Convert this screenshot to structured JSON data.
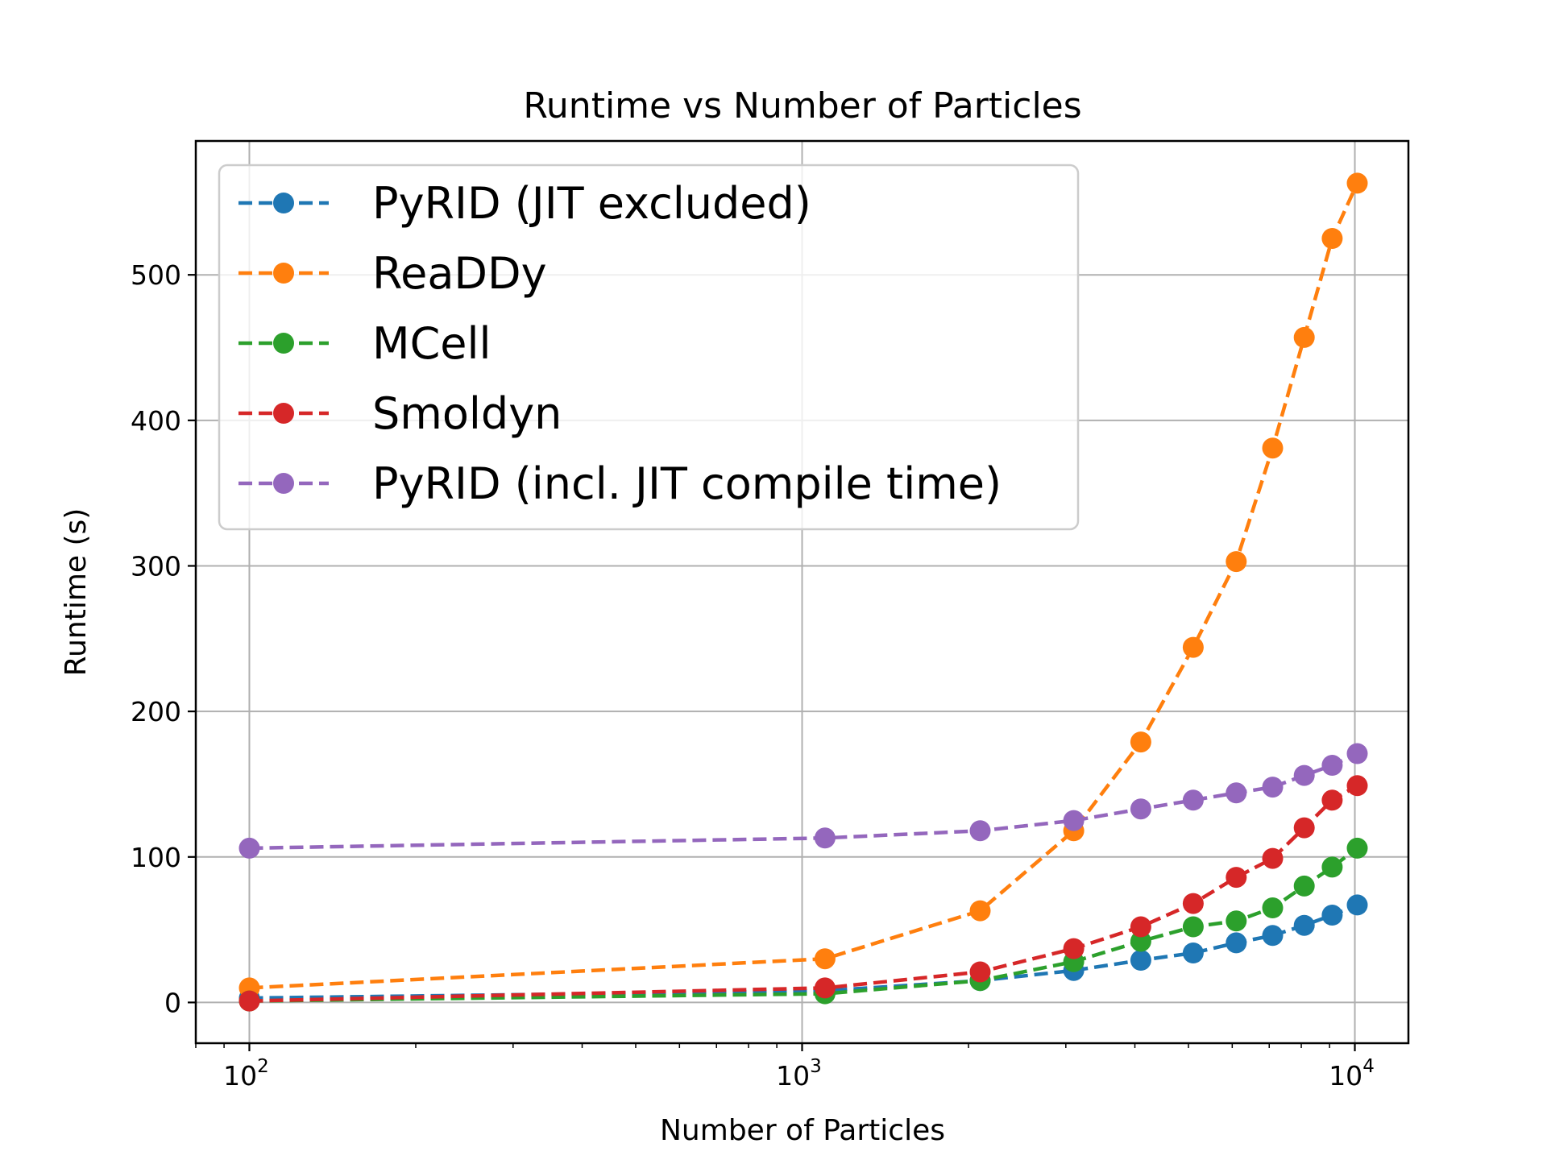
{
  "chart_data": {
    "type": "line",
    "title": "Runtime vs Number of Particles",
    "xlabel": "Number of Particles",
    "ylabel": "Runtime (s)",
    "xscale": "log",
    "xlim": [
      80,
      12500
    ],
    "ylim": [
      -28,
      592
    ],
    "xticks": [
      {
        "value": 100,
        "base": "10",
        "exp": "2"
      },
      {
        "value": 1000,
        "base": "10",
        "exp": "3"
      },
      {
        "value": 10000,
        "base": "10",
        "exp": "4"
      }
    ],
    "yticks": [
      {
        "value": 0,
        "label": "0"
      },
      {
        "value": 100,
        "label": "100"
      },
      {
        "value": 200,
        "label": "200"
      },
      {
        "value": 300,
        "label": "300"
      },
      {
        "value": 400,
        "label": "400"
      },
      {
        "value": 500,
        "label": "500"
      }
    ],
    "grid": true,
    "legend_position": "upper-left",
    "x": [
      100,
      1100,
      2100,
      3100,
      4100,
      5100,
      6100,
      7100,
      8100,
      9100,
      10100
    ],
    "series": [
      {
        "name": "PyRID (JIT excluded)",
        "color": "#1f77b4",
        "values": [
          3,
          8,
          15,
          22,
          29,
          34,
          41,
          46,
          53,
          60,
          67
        ],
        "x": [
          100,
          1100,
          2100,
          3100,
          4100,
          5100,
          6100,
          7100,
          8100,
          9100,
          10100
        ]
      },
      {
        "name": "ReaDDy",
        "color": "#ff7f0e",
        "values": [
          10,
          30,
          63,
          118,
          179,
          244,
          303,
          381,
          457,
          525,
          563
        ],
        "x": [
          100,
          1100,
          2100,
          3100,
          4100,
          5100,
          6100,
          7100,
          8100,
          9100,
          10100
        ]
      },
      {
        "name": "MCell",
        "color": "#2ca02c",
        "values": [
          1,
          6,
          15,
          28,
          42,
          52,
          56,
          65,
          80,
          93,
          106
        ],
        "x": [
          100,
          1100,
          2100,
          3100,
          4100,
          5100,
          6100,
          7100,
          8100,
          9100,
          10100
        ]
      },
      {
        "name": "Smoldyn",
        "color": "#d62728",
        "values": [
          1,
          10,
          21,
          37,
          52,
          68,
          86,
          99,
          120,
          139,
          149
        ],
        "x": [
          100,
          1100,
          2100,
          3100,
          4100,
          5100,
          6100,
          7100,
          8100,
          9100,
          10100
        ]
      },
      {
        "name": "PyRID (incl. JIT compile time)",
        "color": "#9467bd",
        "values": [
          106,
          113,
          118,
          125,
          133,
          139,
          144,
          148,
          156,
          163,
          171
        ],
        "x": [
          100,
          1100,
          2100,
          3100,
          4100,
          5100,
          6100,
          7100,
          8100,
          9100,
          10100
        ]
      }
    ]
  }
}
